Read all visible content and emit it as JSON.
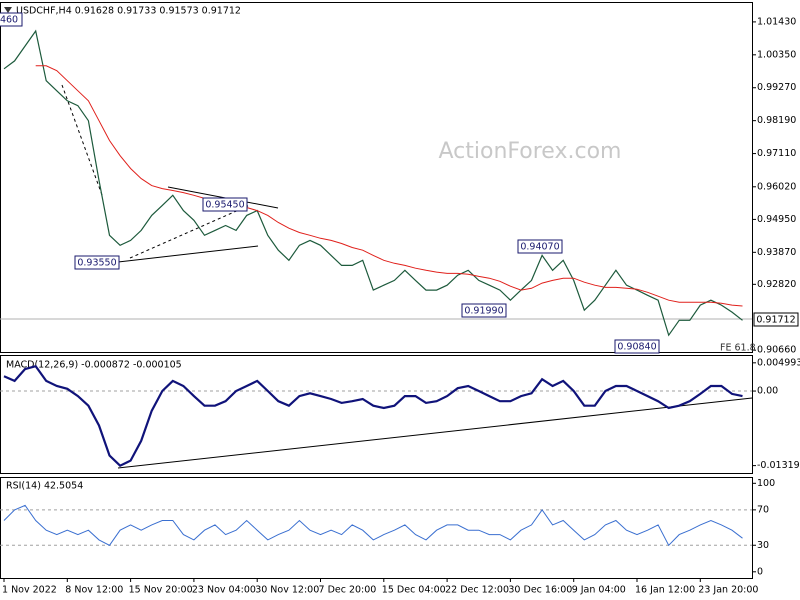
{
  "chart_data": [
    {
      "type": "line",
      "title": "USDCHF,H4 0.91628 0.91733 0.91573 0.91712",
      "watermark": "ActionForex.com",
      "annotations": [
        "460",
        "0.93550",
        "0.95450",
        "0.94070",
        "0.91990",
        "0.90840",
        "FE 61.8"
      ],
      "last_price_label": "0.91712",
      "ylim": [
        0.906,
        1.0205
      ],
      "yticks": [
        {
          "value": 1.0143,
          "label": "1.01430"
        },
        {
          "value": 1.0035,
          "label": "1.00350"
        },
        {
          "value": 0.9927,
          "label": "0.99270"
        },
        {
          "value": 0.9819,
          "label": "0.98190"
        },
        {
          "value": 0.9711,
          "label": "0.97110"
        },
        {
          "value": 0.9602,
          "label": "0.96020"
        },
        {
          "value": 0.9495,
          "label": "0.94950"
        },
        {
          "value": 0.9387,
          "label": "0.93870"
        },
        {
          "value": 0.9282,
          "label": "0.92820"
        },
        {
          "value": 0.9066,
          "label": "0.90660"
        }
      ],
      "series": [
        {
          "color": "#1d5a3c",
          "values": [
            0.9989,
            1.0015,
            1.0064,
            1.0113,
            0.995,
            0.9917,
            0.9884,
            0.9868,
            0.9819,
            0.9623,
            0.9443,
            0.941,
            0.9426,
            0.9459,
            0.9508,
            0.9541,
            0.9574,
            0.9524,
            0.9492,
            0.9443,
            0.9459,
            0.9475,
            0.9459,
            0.9508,
            0.9524,
            0.9443,
            0.9394,
            0.9361,
            0.941,
            0.9426,
            0.941,
            0.9377,
            0.9344,
            0.9344,
            0.9361,
            0.9263,
            0.9279,
            0.9295,
            0.9328,
            0.9295,
            0.9263,
            0.9263,
            0.9279,
            0.9312,
            0.9328,
            0.9295,
            0.9279,
            0.9263,
            0.923,
            0.9263,
            0.9295,
            0.9377,
            0.9328,
            0.9361,
            0.9295,
            0.9197,
            0.923,
            0.9279,
            0.9328,
            0.9279,
            0.9263,
            0.9246,
            0.923,
            0.9115,
            0.9164,
            0.9164,
            0.9214,
            0.923,
            0.9214,
            0.9191,
            0.9164
          ]
        },
        {
          "color": "#e0201b",
          "values": [
            null,
            null,
            null,
            0.9999,
            0.9999,
            0.9983,
            0.995,
            0.9917,
            0.9884,
            0.9819,
            0.9754,
            0.9704,
            0.9662,
            0.9629,
            0.9606,
            0.9596,
            0.959,
            0.9583,
            0.9574,
            0.9564,
            0.9557,
            0.9547,
            0.9541,
            0.9534,
            0.9524,
            0.9508,
            0.9485,
            0.9466,
            0.9452,
            0.9443,
            0.9433,
            0.9426,
            0.9416,
            0.9403,
            0.9394,
            0.9377,
            0.9361,
            0.9351,
            0.9344,
            0.9335,
            0.9328,
            0.9322,
            0.9318,
            0.9318,
            0.9315,
            0.9308,
            0.9302,
            0.9292,
            0.9276,
            0.9263,
            0.9269,
            0.9286,
            0.9295,
            0.9302,
            0.9302,
            0.9289,
            0.9279,
            0.9272,
            0.9272,
            0.9269,
            0.9266,
            0.9256,
            0.9243,
            0.923,
            0.9223,
            0.9223,
            0.9223,
            0.9223,
            0.922,
            0.9214,
            0.9211
          ]
        }
      ]
    },
    {
      "type": "line",
      "title": "MACD(12,26,9) -0.000872 -0.000105",
      "ylim": [
        -0.0145,
        0.0062
      ],
      "yticks": [
        0.004993,
        {
          "value": 0,
          "label": "0.00"
        },
        -0.013193
      ],
      "series": [
        {
          "color": "#10137a",
          "values": [
            0.0026,
            0.0018,
            0.0039,
            0.0044,
            0.0018,
            0.0009,
            0.0004,
            -0.0009,
            -0.0026,
            -0.0061,
            -0.0114,
            -0.0132,
            -0.0123,
            -0.0088,
            -0.0035,
            0,
            0.0018,
            0.0009,
            -0.0009,
            -0.0026,
            -0.0026,
            -0.0018,
            0,
            0.0009,
            0.0018,
            0,
            -0.0018,
            -0.0026,
            -0.0009,
            -0.0004,
            -0.0009,
            -0.0014,
            -0.0021,
            -0.0018,
            -0.0014,
            -0.0026,
            -0.003,
            -0.0026,
            -0.0009,
            -0.0009,
            -0.0021,
            -0.0018,
            -0.0009,
            0.0005,
            0.0009,
            0,
            -0.0009,
            -0.0018,
            -0.0018,
            -0.0009,
            -0.0004,
            0.0021,
            0.0009,
            0.0018,
            0,
            -0.0026,
            -0.0026,
            0,
            0.0009,
            0.0009,
            0,
            -0.0009,
            -0.0018,
            -0.003,
            -0.0026,
            -0.0018,
            -0.0005,
            0.0009,
            0.0009,
            -0.0005,
            -0.0009
          ]
        }
      ]
    },
    {
      "type": "line",
      "title": "RSI(14) 42.5054",
      "ylim": [
        -7,
        106
      ],
      "yticks": [
        100,
        70,
        30,
        0
      ],
      "categories": [
        "1 Nov 2022",
        null,
        null,
        null,
        null,
        null,
        "8 Nov 12:00",
        null,
        null,
        null,
        null,
        null,
        "15 Nov 20:00",
        null,
        null,
        null,
        null,
        null,
        "23 Nov 04:00",
        null,
        null,
        null,
        null,
        null,
        "30 Nov 12:00",
        null,
        null,
        null,
        null,
        null,
        "7 Dec 20:00",
        null,
        null,
        null,
        null,
        null,
        "15 Dec 04:00",
        null,
        null,
        null,
        null,
        null,
        "22 Dec 12:00",
        null,
        null,
        null,
        null,
        null,
        "30 Dec 16:00",
        null,
        null,
        null,
        null,
        null,
        "9 Jan 04:00",
        null,
        null,
        null,
        null,
        null,
        "16 Jan 12:00",
        null,
        null,
        null,
        null,
        null,
        "23 Jan 20:00",
        null,
        null,
        null,
        null
      ],
      "series": [
        {
          "color": "#3a6fd0",
          "values": [
            58,
            70,
            75,
            58,
            47,
            42,
            47,
            42,
            47,
            36,
            30,
            47,
            53,
            47,
            53,
            58,
            58,
            42,
            36,
            47,
            53,
            42,
            47,
            58,
            47,
            36,
            42,
            47,
            58,
            47,
            42,
            47,
            42,
            53,
            47,
            36,
            42,
            47,
            53,
            42,
            36,
            47,
            53,
            53,
            47,
            47,
            42,
            42,
            36,
            47,
            53,
            70,
            53,
            58,
            47,
            36,
            42,
            53,
            58,
            47,
            42,
            47,
            53,
            30,
            42,
            47,
            53,
            58,
            53,
            47,
            38
          ]
        }
      ]
    }
  ]
}
